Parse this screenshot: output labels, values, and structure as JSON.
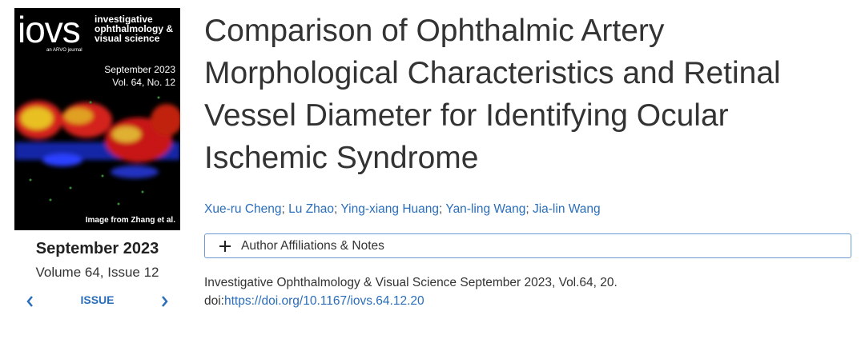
{
  "cover": {
    "logo": "iovs",
    "journal_lines": [
      "investigative",
      "ophthalmology &",
      "visual science"
    ],
    "publisher": "an ARVO journal",
    "date": "September 2023",
    "volume": "Vol. 64, No. 12",
    "credit": "Image from Zhang et al."
  },
  "issue": {
    "date": "September 2023",
    "volume": "Volume 64, Issue 12",
    "nav_label": "ISSUE"
  },
  "article": {
    "title_lines": [
      "Comparison of Ophthalmic Artery",
      "Morphological Characteristics and Retinal",
      "Vessel Diameter for Identifying Ocular",
      "Ischemic Syndrome"
    ],
    "authors": [
      "Xue-ru Cheng",
      "Lu Zhao",
      "Ying-xiang Huang",
      "Yan-ling Wang",
      "Jia-lin Wang"
    ],
    "author_separator": ";",
    "affiliations_button": "Author Affiliations & Notes",
    "citation": "Investigative Ophthalmology & Visual Science September 2023, Vol.64, 20.",
    "doi_label": "doi:",
    "doi_url": "https://doi.org/10.1167/iovs.64.12.20"
  }
}
